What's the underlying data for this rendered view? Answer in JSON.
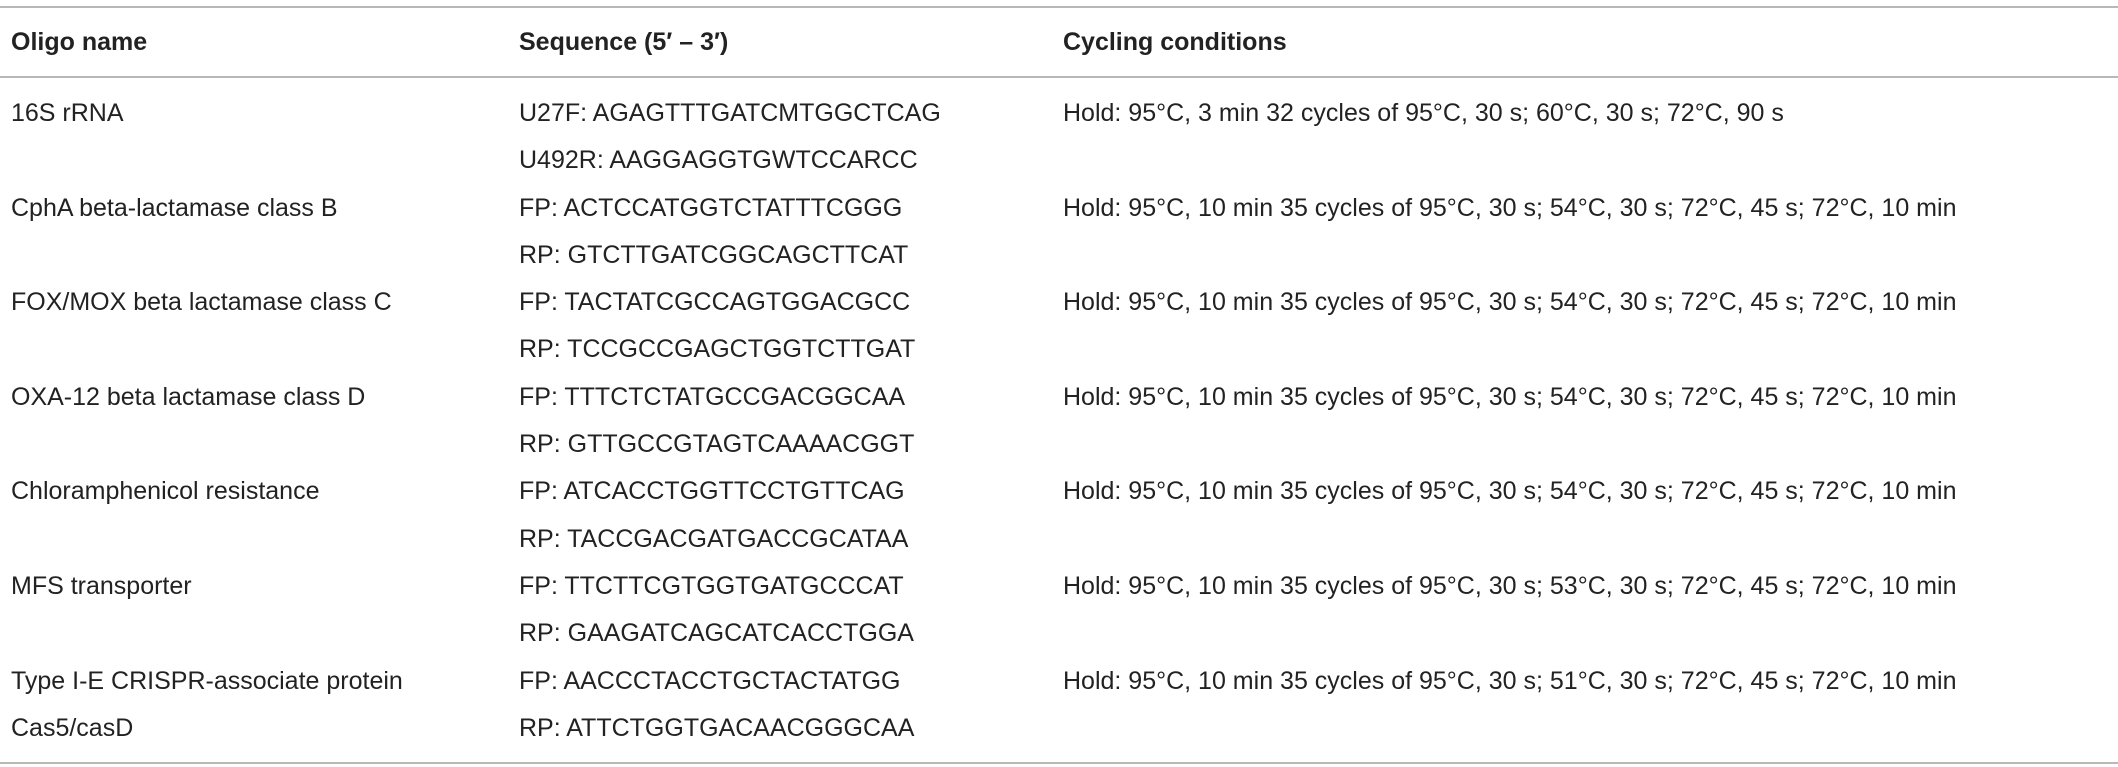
{
  "table": {
    "header": [
      "Oligo name",
      "Sequence (5′ – 3′)",
      "Cycling conditions"
    ],
    "rows": [
      {
        "name": "16S rRNA",
        "sequences": [
          "U27F: AGAGTTTGATCMTGGCTCAG",
          "U492R: AAGGAGGTGWTCCARCC"
        ],
        "cycling": "Hold: 95°C, 3 min 32 cycles of 95°C, 30 s; 60°C, 30 s; 72°C, 90 s"
      },
      {
        "name": "CphA beta-lactamase class B",
        "sequences": [
          "FP: ACTCCATGGTCTATTTCGGG",
          "RP: GTCTTGATCGGCAGCTTCAT"
        ],
        "cycling": "Hold: 95°C, 10 min 35 cycles of 95°C, 30 s; 54°C, 30 s; 72°C, 45 s; 72°C, 10 min"
      },
      {
        "name": "FOX/MOX beta lactamase class C",
        "sequences": [
          "FP: TACTATCGCCAGTGGACGCC",
          "RP: TCCGCCGAGCTGGTCTTGAT"
        ],
        "cycling": "Hold: 95°C, 10 min 35 cycles of 95°C, 30 s; 54°C, 30 s; 72°C, 45 s; 72°C, 10 min"
      },
      {
        "name": "OXA-12 beta lactamase class D",
        "sequences": [
          "FP: TTTCTCTATGCCGACGGCAA",
          "RP: GTTGCCGTAGTCAAAACGGT"
        ],
        "cycling": "Hold: 95°C, 10 min 35 cycles of 95°C, 30 s; 54°C, 30 s; 72°C, 45 s; 72°C, 10 min"
      },
      {
        "name": "Chloramphenicol resistance",
        "sequences": [
          "FP: ATCACCTGGTTCCTGTTCAG",
          "RP: TACCGACGATGACCGCATAA"
        ],
        "cycling": "Hold: 95°C, 10 min 35 cycles of 95°C, 30 s; 54°C, 30 s; 72°C, 45 s; 72°C, 10 min"
      },
      {
        "name": "MFS transporter",
        "sequences": [
          "FP: TTCTTCGTGGTGATGCCCAT",
          "RP: GAAGATCAGCATCACCTGGA"
        ],
        "cycling": "Hold: 95°C, 10 min 35 cycles of 95°C, 30 s; 53°C, 30 s; 72°C, 45 s; 72°C, 10 min"
      },
      {
        "name": "Type I-E CRISPR-associate protein Cas5/casD",
        "sequences": [
          "FP: AACCCTACCTGCTACTATGG",
          "RP: ATTCTGGTGACAACGGGCAA"
        ],
        "cycling": "Hold: 95°C, 10 min 35 cycles of 95°C, 30 s; 51°C, 30 s; 72°C, 45 s; 72°C, 10 min"
      }
    ]
  }
}
